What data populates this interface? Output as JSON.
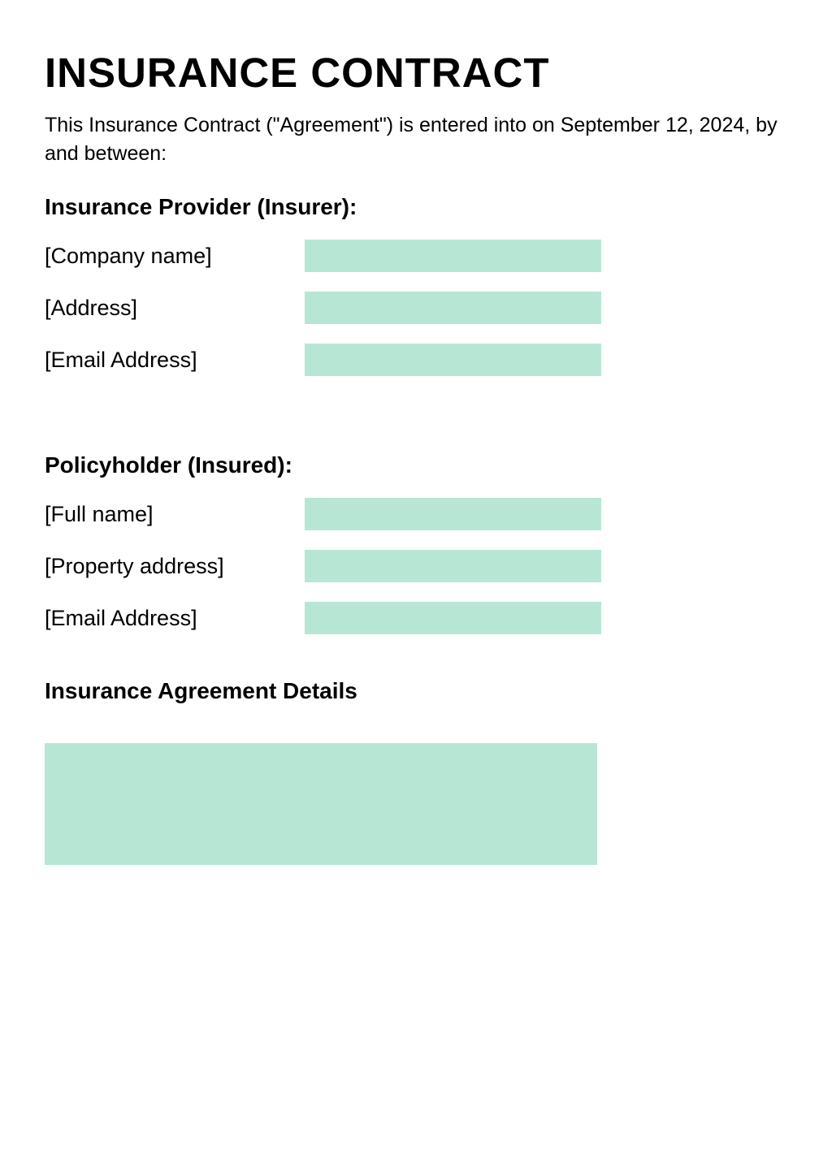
{
  "title": "INSURANCE CONTRACT",
  "intro": "This Insurance Contract (\"Agreement\") is entered into on September 12, 2024, by and between:",
  "colors": {
    "input_bg": "#b8e6d5",
    "text": "#000000",
    "background": "#ffffff"
  },
  "insurer": {
    "heading": "Insurance Provider (Insurer):",
    "fields": [
      {
        "label": "[Company name]",
        "value": ""
      },
      {
        "label": "[Address]",
        "value": ""
      },
      {
        "label": "[Email Address]",
        "value": ""
      }
    ]
  },
  "insured": {
    "heading": "Policyholder (Insured):",
    "fields": [
      {
        "label": "[Full name]",
        "value": ""
      },
      {
        "label": "[Property address]",
        "value": ""
      },
      {
        "label": "[Email Address]",
        "value": ""
      }
    ]
  },
  "details": {
    "heading": "Insurance Agreement Details",
    "value": ""
  }
}
